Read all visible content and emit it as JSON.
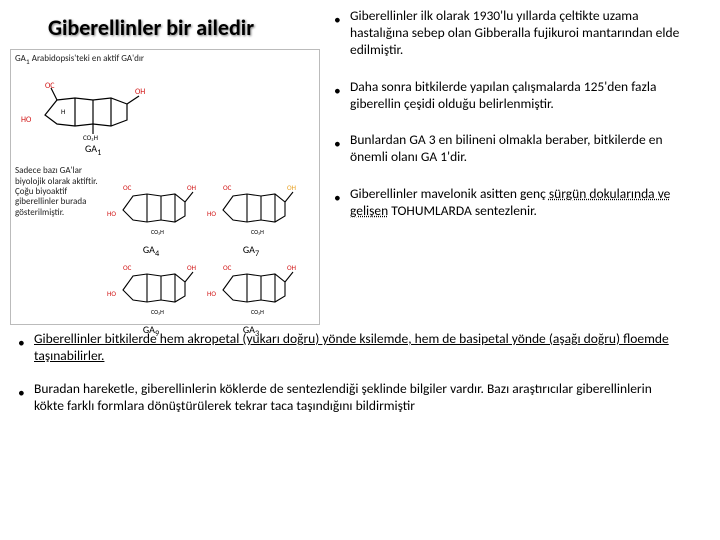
{
  "title": "Giberellinler bir ailedir",
  "left_image": {
    "caption_html": "GA<sub>1</sub> Arabidopsis'teki en aktif GA'dır",
    "mol1_label_html": "GA<sub>1</sub>",
    "side_text": "Sadece bazı GA'lar biyolojik olarak aktiftir. Çoğu biyoaktif giberellinler burada gösterilmiştir.",
    "mol2_label_html": "GA<sub>4</sub>",
    "mol3_label_html": "GA<sub>7</sub>",
    "mol4_label_html": "GA<sub>9</sub>",
    "mol5_label_html": "GA<sub>3</sub>",
    "label_HO": "HO",
    "label_OC": "OC",
    "label_CO2H": "CO₂H",
    "label_OH": "OH",
    "color_red": "#d11313",
    "color_black": "#000000",
    "color_border": "#bbbbbb"
  },
  "right_bullets": [
    "Giberellinler ilk olarak 1930'lu yıllarda çeltikte uzama hastalığına sebep olan Gibberalla fujikuroi mantarından elde edilmiştir.",
    "Daha sonra bitkilerde yapılan çalışmalarda 125'den fazla giberellin çeşidi olduğu belirlenmiştir.",
    "Bunlardan GA 3 en bilineni olmakla beraber, bitkilerde en önemli olanı GA 1'dir.",
    "Giberellinler mavelonik asitten genç <u class=\"dot-u\">sürgün dokularında ve gelişen</u> TOHUMLARDA sentezlenir."
  ],
  "bottom_bullets": [
    "<u>Giberellinler bitkilerde hem akropetal (yukarı doğru) yönde ksilemde, hem de basipetal yönde (aşağı doğru) floemde taşınabilirler.</u>",
    "Buradan hareketle, giberellinlerin köklerde de sentezlendiği şeklinde bilgiler vardır. Bazı araştırıcılar giberellinlerin kökte farklı formlara dönüştürülerek tekrar taca taşındığını bildirmiştir"
  ],
  "colors": {
    "bg": "#ffffff",
    "text": "#000000"
  }
}
